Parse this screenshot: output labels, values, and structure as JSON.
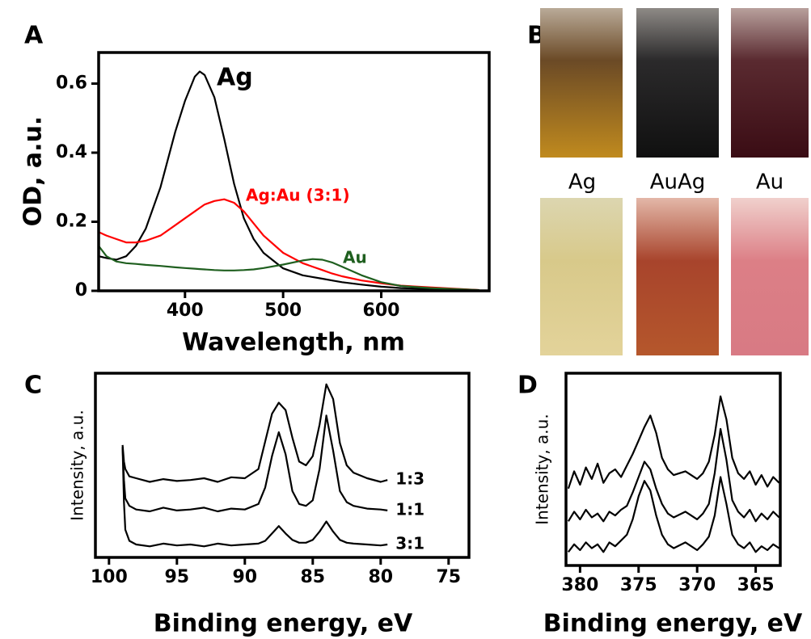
{
  "chart_data": [
    {
      "type": "line",
      "panel": "A",
      "xlabel": "Wavelength, nm",
      "ylabel": "OD, a.u.",
      "x": [
        312,
        320,
        330,
        340,
        350,
        360,
        375,
        390,
        400,
        410,
        415,
        420,
        430,
        440,
        450,
        460,
        470,
        480,
        500,
        520,
        530,
        540,
        550,
        560,
        580,
        600,
        620,
        650,
        700
      ],
      "xlim": [
        312,
        710
      ],
      "ylim": [
        0,
        0.69
      ],
      "xticks": [
        400,
        500,
        600
      ],
      "yticks": [
        0,
        0.2,
        0.4,
        0.6
      ],
      "series": [
        {
          "name": "Ag",
          "color": "#000000",
          "values": [
            0.1,
            0.095,
            0.09,
            0.1,
            0.13,
            0.18,
            0.3,
            0.46,
            0.55,
            0.62,
            0.635,
            0.625,
            0.56,
            0.44,
            0.31,
            0.21,
            0.15,
            0.11,
            0.065,
            0.045,
            0.04,
            0.035,
            0.03,
            0.025,
            0.018,
            0.012,
            0.008,
            0.005,
            0.002
          ]
        },
        {
          "name": "Ag:Au (3:1)",
          "color": "#ff0000",
          "values": [
            0.17,
            0.16,
            0.15,
            0.14,
            0.14,
            0.145,
            0.16,
            0.19,
            0.21,
            0.23,
            0.24,
            0.25,
            0.26,
            0.265,
            0.255,
            0.23,
            0.195,
            0.16,
            0.11,
            0.08,
            0.07,
            0.06,
            0.05,
            0.042,
            0.03,
            0.022,
            0.015,
            0.01,
            0.002
          ]
        },
        {
          "name": "Au",
          "color": "#1f5f1f",
          "values": [
            0.13,
            0.1,
            0.085,
            0.08,
            0.078,
            0.075,
            0.072,
            0.068,
            0.066,
            0.064,
            0.063,
            0.062,
            0.06,
            0.059,
            0.059,
            0.06,
            0.062,
            0.066,
            0.076,
            0.088,
            0.092,
            0.09,
            0.082,
            0.07,
            0.045,
            0.025,
            0.014,
            0.008,
            0.002
          ]
        }
      ]
    },
    {
      "type": "line",
      "panel": "C",
      "xlabel": "Binding energy, eV",
      "ylabel": "Intensity, a.u.",
      "x": [
        99,
        98.9,
        98.8,
        98.5,
        98,
        97,
        96,
        95,
        94,
        93,
        92,
        91,
        90,
        89,
        88.5,
        88,
        87.5,
        87,
        86.5,
        86,
        85.5,
        85,
        84.5,
        84,
        83.5,
        83,
        82.5,
        82,
        81,
        80,
        79.5
      ],
      "xlim": [
        101,
        73.5
      ],
      "ylim": [
        0,
        10
      ],
      "xticks": [
        100,
        95,
        90,
        85,
        80,
        75
      ],
      "series": [
        {
          "name": "1:3",
          "color": "#000000",
          "values": [
            6.1,
            5.2,
            4.8,
            4.4,
            4.3,
            4.1,
            4.25,
            4.15,
            4.2,
            4.3,
            4.1,
            4.35,
            4.3,
            4.8,
            6.3,
            7.8,
            8.4,
            8.0,
            6.5,
            5.2,
            5.0,
            5.5,
            7.2,
            9.4,
            8.6,
            6.2,
            5.0,
            4.6,
            4.3,
            4.1,
            4.2
          ]
        },
        {
          "name": "1:1",
          "color": "#000000",
          "values": [
            6.0,
            4.2,
            3.2,
            2.8,
            2.6,
            2.5,
            2.7,
            2.55,
            2.6,
            2.7,
            2.5,
            2.65,
            2.6,
            2.9,
            3.8,
            5.5,
            6.8,
            5.6,
            3.6,
            2.9,
            2.8,
            3.1,
            4.8,
            7.7,
            5.8,
            3.6,
            3.0,
            2.8,
            2.65,
            2.6,
            2.55
          ]
        },
        {
          "name": "3:1",
          "color": "#000000",
          "values": [
            6.0,
            3.0,
            1.5,
            0.9,
            0.7,
            0.6,
            0.75,
            0.65,
            0.7,
            0.6,
            0.75,
            0.65,
            0.7,
            0.75,
            0.9,
            1.3,
            1.7,
            1.3,
            0.95,
            0.8,
            0.8,
            0.95,
            1.4,
            1.95,
            1.4,
            0.95,
            0.8,
            0.75,
            0.7,
            0.65,
            0.7
          ]
        }
      ]
    },
    {
      "type": "line",
      "panel": "D",
      "xlabel": "Binding energy, eV",
      "ylabel": "Intensity, a.u.",
      "x": [
        381,
        380.5,
        380,
        379.5,
        379,
        378.5,
        378,
        377.5,
        377,
        376.5,
        376,
        375.5,
        375,
        374.5,
        374,
        373.5,
        373,
        372.5,
        372,
        371,
        370,
        369.5,
        369,
        368.5,
        368,
        367.5,
        367,
        366.5,
        366,
        365.5,
        365,
        364.5,
        364,
        363.5,
        363
      ],
      "xlim": [
        381.2,
        362.9
      ],
      "ylim": [
        0,
        10
      ],
      "xticks": [
        380,
        375,
        370,
        365
      ],
      "series": [
        {
          "color": "#000000",
          "values": [
            4.0,
            4.9,
            4.2,
            5.1,
            4.5,
            5.3,
            4.3,
            4.8,
            5.0,
            4.6,
            5.2,
            5.8,
            6.5,
            7.2,
            7.8,
            6.9,
            5.6,
            5.0,
            4.7,
            4.9,
            4.5,
            4.8,
            5.4,
            6.8,
            8.8,
            7.6,
            5.6,
            4.8,
            4.5,
            4.9,
            4.2,
            4.7,
            4.1,
            4.6,
            4.3
          ]
        },
        {
          "color": "#000000",
          "values": [
            2.3,
            2.8,
            2.4,
            2.9,
            2.5,
            2.7,
            2.3,
            2.8,
            2.6,
            2.9,
            3.1,
            3.8,
            4.6,
            5.4,
            5.0,
            4.0,
            3.2,
            2.7,
            2.5,
            2.8,
            2.4,
            2.7,
            3.2,
            4.8,
            7.1,
            5.5,
            3.4,
            2.8,
            2.5,
            2.9,
            2.3,
            2.7,
            2.4,
            2.8,
            2.5
          ]
        },
        {
          "color": "#000000",
          "values": [
            0.7,
            1.1,
            0.8,
            1.2,
            0.9,
            1.1,
            0.7,
            1.2,
            1.0,
            1.3,
            1.6,
            2.4,
            3.6,
            4.4,
            3.9,
            2.6,
            1.6,
            1.1,
            0.9,
            1.2,
            0.8,
            1.1,
            1.5,
            2.6,
            4.6,
            3.2,
            1.6,
            1.1,
            0.9,
            1.2,
            0.7,
            1.0,
            0.8,
            1.1,
            0.9
          ]
        }
      ]
    }
  ],
  "photo_panel": {
    "label": "B",
    "captions": [
      "Ag",
      "AuAg",
      "Au"
    ]
  }
}
